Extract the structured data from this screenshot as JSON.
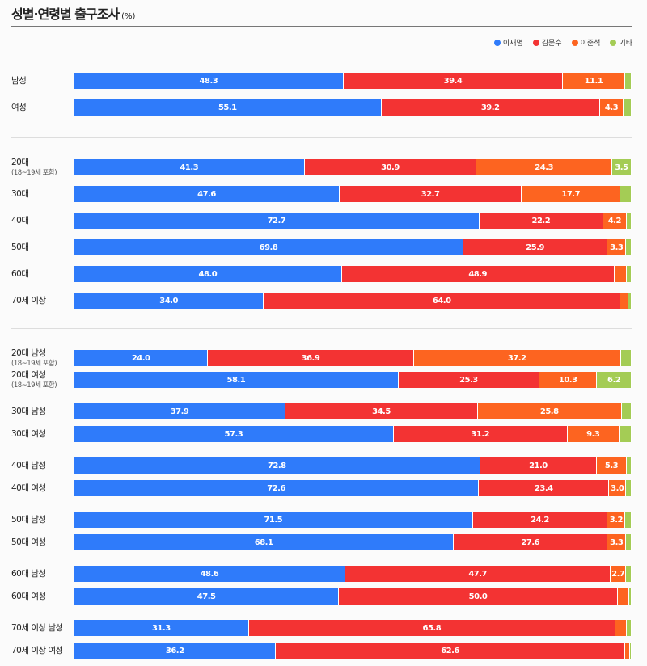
{
  "chart_data": {
    "type": "bar",
    "orientation": "horizontal-stacked-100",
    "title": "성별·연령별 출구조사",
    "unit": "(%)",
    "legend_position": "top-right",
    "series": [
      {
        "name": "이재명",
        "color": "#2f7bfa"
      },
      {
        "name": "김문수",
        "color": "#f33333"
      },
      {
        "name": "이준석",
        "color": "#fd6420"
      },
      {
        "name": "기타",
        "color": "#a4cc55"
      }
    ],
    "rows": [
      {
        "label": "남성",
        "values": [
          48.3,
          39.4,
          11.1,
          1.2
        ]
      },
      {
        "label": "여성",
        "values": [
          55.1,
          39.2,
          4.3,
          1.4
        ]
      },
      {
        "label": "20대",
        "note": "(18~19세 포함)",
        "values": [
          41.3,
          30.9,
          24.3,
          3.5
        ]
      },
      {
        "label": "30대",
        "values": [
          47.6,
          32.7,
          17.7,
          2.0
        ]
      },
      {
        "label": "40대",
        "values": [
          72.7,
          22.2,
          4.2,
          0.9
        ]
      },
      {
        "label": "50대",
        "values": [
          69.8,
          25.9,
          3.3,
          1.0
        ]
      },
      {
        "label": "60대",
        "values": [
          48.0,
          48.9,
          2.3,
          0.8
        ]
      },
      {
        "label": "70세 이상",
        "values": [
          34.0,
          64.0,
          1.4,
          0.6
        ]
      },
      {
        "label": "20대 남성",
        "note": "(18~19세 포함)",
        "values": [
          24.0,
          36.9,
          37.2,
          1.9
        ]
      },
      {
        "label": "20대 여성",
        "note": "(18~19세 포함)",
        "values": [
          58.1,
          25.3,
          10.3,
          6.2
        ]
      },
      {
        "label": "30대 남성",
        "values": [
          37.9,
          34.5,
          25.8,
          1.8
        ]
      },
      {
        "label": "30대 여성",
        "values": [
          57.3,
          31.2,
          9.3,
          2.2
        ]
      },
      {
        "label": "40대 남성",
        "values": [
          72.8,
          21.0,
          5.3,
          0.9
        ]
      },
      {
        "label": "40대 여성",
        "values": [
          72.6,
          23.4,
          3.0,
          1.0
        ]
      },
      {
        "label": "50대 남성",
        "values": [
          71.5,
          24.2,
          3.2,
          1.1
        ]
      },
      {
        "label": "50대 여성",
        "values": [
          68.1,
          27.6,
          3.3,
          1.0
        ]
      },
      {
        "label": "60대 남성",
        "values": [
          48.6,
          47.7,
          2.7,
          1.0
        ]
      },
      {
        "label": "60대 여성",
        "values": [
          47.5,
          50.0,
          2.0,
          0.5
        ]
      },
      {
        "label": "70세 이상 남성",
        "values": [
          31.3,
          65.8,
          2.0,
          0.9
        ]
      },
      {
        "label": "70세 이상 여성",
        "values": [
          36.2,
          62.6,
          0.9,
          0.3
        ]
      }
    ],
    "xlim": [
      0,
      100
    ]
  }
}
